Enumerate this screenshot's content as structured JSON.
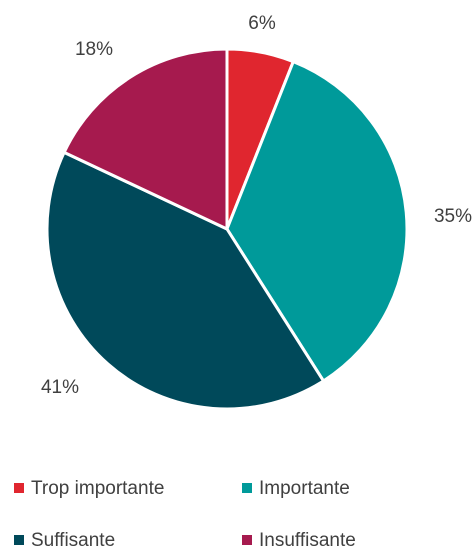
{
  "chart_data": {
    "type": "pie",
    "title": "",
    "categories": [
      "Trop importante",
      "Importante",
      "Suffisante",
      "Insuffisante"
    ],
    "values": [
      6,
      35,
      41,
      18
    ],
    "labels": [
      "6%",
      "35%",
      "41%",
      "18%"
    ],
    "colors": [
      "#e0262f",
      "#009a9a",
      "#00495a",
      "#a61a4e"
    ],
    "start_angle_deg": 0,
    "direction": "clockwise",
    "legend_position": "bottom"
  }
}
